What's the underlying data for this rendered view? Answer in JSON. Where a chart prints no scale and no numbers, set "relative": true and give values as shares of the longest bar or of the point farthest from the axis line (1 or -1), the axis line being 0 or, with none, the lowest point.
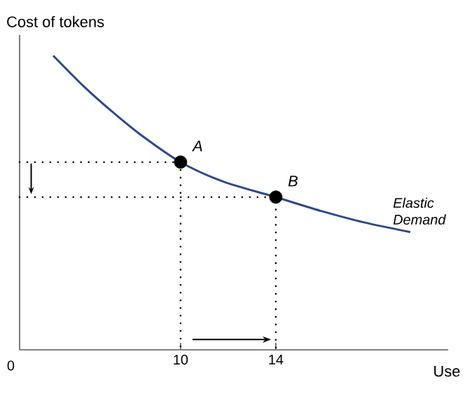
{
  "chart_data": {
    "type": "line",
    "relative": true,
    "xlabel": "Use",
    "ylabel": "Cost of tokens",
    "xlim": [
      3.24,
      21.24
    ],
    "xticks": [
      10,
      14
    ],
    "grid": false,
    "annotations": [
      "0",
      {
        "text": "A",
        "x": 10,
        "y": 0.638
      },
      {
        "text": "B",
        "x": 14,
        "y": 0.519
      }
    ],
    "series": [
      {
        "name": "Elastic Demand",
        "color": "#2b4a8b",
        "x": [
          4.65,
          5.94,
          7.12,
          8.29,
          10,
          11.82,
          14,
          15.94,
          17.71,
          19.65
        ],
        "values": [
          1.0,
          0.895,
          0.81,
          0.733,
          0.638,
          0.571,
          0.519,
          0.471,
          0.433,
          0.4
        ],
        "marker": "none",
        "line_style": "solid"
      },
      {
        "color": "#000000",
        "x": [
          3.24,
          10,
          10
        ],
        "values": [
          0.638,
          0.638,
          0
        ],
        "marker": "none",
        "line_style": "dotted"
      },
      {
        "color": "#000000",
        "x": [
          3.24,
          14,
          14
        ],
        "values": [
          0.519,
          0.519,
          0
        ],
        "marker": "none",
        "line_style": "dotted"
      },
      {
        "type": "scatter",
        "color": "#000000",
        "x": [
          10,
          14
        ],
        "values": [
          0.638,
          0.519
        ],
        "marker": "circle"
      }
    ]
  }
}
